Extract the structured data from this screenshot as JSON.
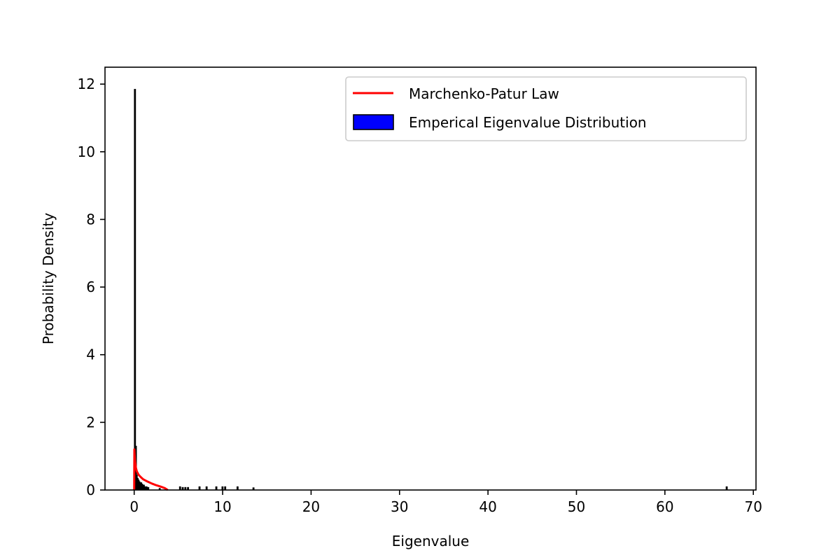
{
  "chart_data": {
    "type": "bar",
    "title": "",
    "xlabel": "Eigenvalue",
    "ylabel": "Probability Density",
    "xlim": [
      -3.3,
      70.3
    ],
    "ylim": [
      0,
      12.5
    ],
    "xticks": [
      0,
      10,
      20,
      30,
      40,
      50,
      60,
      70
    ],
    "yticks": [
      0,
      2,
      4,
      6,
      8,
      10,
      12
    ],
    "grid": false,
    "legend_position": "top-right",
    "bin_width": 0.1,
    "series": [
      {
        "name": "Emperical Eigenvalue Distribution",
        "kind": "histogram",
        "fill": "#0000ff",
        "edge": "#000000",
        "bins": [
          {
            "x": 0.0,
            "y": 11.85
          },
          {
            "x": 0.1,
            "y": 1.3
          },
          {
            "x": 0.2,
            "y": 0.45
          },
          {
            "x": 0.3,
            "y": 0.35
          },
          {
            "x": 0.4,
            "y": 0.3
          },
          {
            "x": 0.5,
            "y": 0.25
          },
          {
            "x": 0.6,
            "y": 0.2
          },
          {
            "x": 0.7,
            "y": 0.22
          },
          {
            "x": 0.8,
            "y": 0.18
          },
          {
            "x": 0.9,
            "y": 0.15
          },
          {
            "x": 1.0,
            "y": 0.15
          },
          {
            "x": 1.1,
            "y": 0.1
          },
          {
            "x": 1.3,
            "y": 0.1
          },
          {
            "x": 1.5,
            "y": 0.08
          },
          {
            "x": 2.8,
            "y": 0.05
          },
          {
            "x": 5.1,
            "y": 0.1
          },
          {
            "x": 5.4,
            "y": 0.08
          },
          {
            "x": 5.7,
            "y": 0.08
          },
          {
            "x": 6.0,
            "y": 0.08
          },
          {
            "x": 7.3,
            "y": 0.1
          },
          {
            "x": 8.1,
            "y": 0.1
          },
          {
            "x": 9.2,
            "y": 0.1
          },
          {
            "x": 9.9,
            "y": 0.1
          },
          {
            "x": 10.2,
            "y": 0.1
          },
          {
            "x": 11.6,
            "y": 0.1
          },
          {
            "x": 13.4,
            "y": 0.07
          },
          {
            "x": 66.9,
            "y": 0.1
          }
        ]
      },
      {
        "name": "Marchenko-Patur Law",
        "kind": "line",
        "color": "#ff0000",
        "points": [
          {
            "x": 0.0,
            "y": 0.0
          },
          {
            "x": 0.02,
            "y": 1.2
          },
          {
            "x": 0.05,
            "y": 1.05
          },
          {
            "x": 0.1,
            "y": 0.85
          },
          {
            "x": 0.2,
            "y": 0.65
          },
          {
            "x": 0.3,
            "y": 0.55
          },
          {
            "x": 0.5,
            "y": 0.45
          },
          {
            "x": 0.75,
            "y": 0.38
          },
          {
            "x": 1.0,
            "y": 0.32
          },
          {
            "x": 1.5,
            "y": 0.25
          },
          {
            "x": 2.0,
            "y": 0.19
          },
          {
            "x": 2.5,
            "y": 0.14
          },
          {
            "x": 3.0,
            "y": 0.1
          },
          {
            "x": 3.5,
            "y": 0.05
          },
          {
            "x": 3.8,
            "y": 0.0
          }
        ]
      }
    ]
  }
}
